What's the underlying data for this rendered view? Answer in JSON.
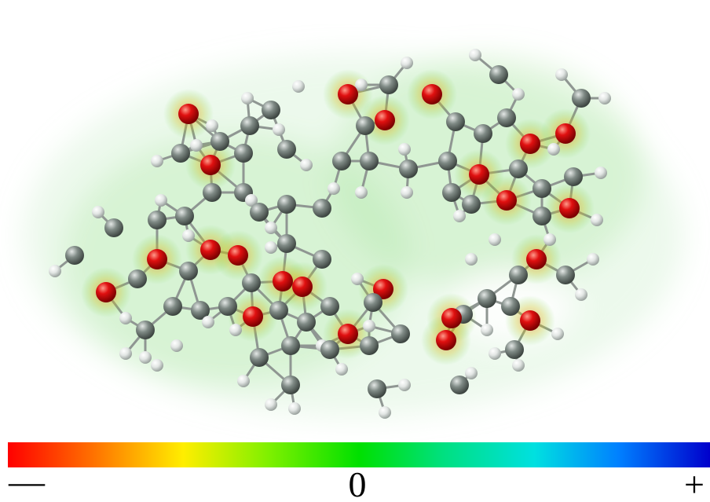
{
  "colorbar": {
    "labels": [
      "—",
      "0",
      "+"
    ]
  }
}
